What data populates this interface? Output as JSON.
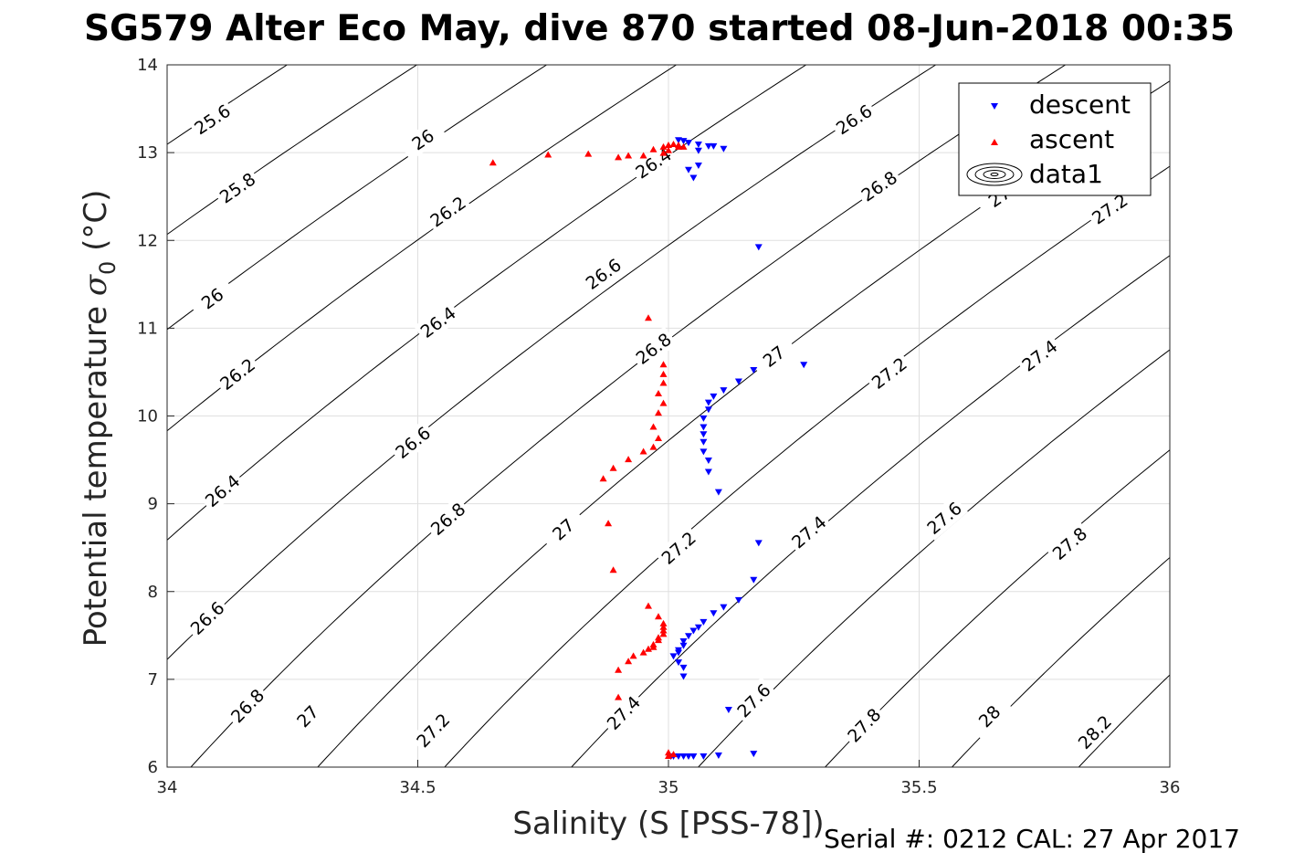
{
  "chart_data": {
    "type": "scatter",
    "title": "SG579 Alter Eco May, dive 870 started 08-Jun-2018 00:35",
    "xlabel": "Salinity (S [PSS-78])",
    "ylabel_main": "Potential temperature ",
    "ylabel_sigma": "σ",
    "ylabel_sub": "0",
    "ylabel_unit": " (°C)",
    "footer": "Serial #: 0212  CAL: 27 Apr 2017",
    "xlim": [
      34,
      36
    ],
    "ylim": [
      6,
      14
    ],
    "x_ticks": [
      34,
      34.5,
      35,
      35.5,
      36
    ],
    "x_tick_labels": [
      "34",
      "34.5",
      "35",
      "35.5",
      "36"
    ],
    "y_ticks": [
      6,
      7,
      8,
      9,
      10,
      11,
      12,
      13,
      14
    ],
    "y_tick_labels": [
      "6",
      "7",
      "8",
      "9",
      "10",
      "11",
      "12",
      "13",
      "14"
    ],
    "grid": true,
    "legend_position": "top-right",
    "contour_levels": [
      25.6,
      25.8,
      26.0,
      26.2,
      26.4,
      26.6,
      26.8,
      27.0,
      27.2,
      27.4,
      27.6,
      27.8,
      28.0,
      28.2
    ],
    "contour_labels": [
      {
        "text": "25.6",
        "S": 34.09,
        "T": 13.38
      },
      {
        "text": "25.8",
        "S": 34.14,
        "T": 12.6
      },
      {
        "text": "26",
        "S": 34.09,
        "T": 11.34
      },
      {
        "text": "26.2",
        "S": 34.14,
        "T": 10.48
      },
      {
        "text": "26.4",
        "S": 34.11,
        "T": 9.15
      },
      {
        "text": "26.6",
        "S": 34.08,
        "T": 7.7
      },
      {
        "text": "26.8",
        "S": 34.16,
        "T": 6.7
      },
      {
        "text": "26",
        "S": 34.51,
        "T": 13.15
      },
      {
        "text": "26.2",
        "S": 34.56,
        "T": 12.33
      },
      {
        "text": "26.4",
        "S": 34.54,
        "T": 11.07
      },
      {
        "text": "26.6",
        "S": 34.49,
        "T": 9.7
      },
      {
        "text": "26.8",
        "S": 34.56,
        "T": 8.83
      },
      {
        "text": "27",
        "S": 34.28,
        "T": 6.58
      },
      {
        "text": "27.2",
        "S": 34.53,
        "T": 6.42
      },
      {
        "text": "26.4",
        "S": 34.97,
        "T": 12.88
      },
      {
        "text": "26.6",
        "S": 34.87,
        "T": 11.62
      },
      {
        "text": "26.8",
        "S": 34.97,
        "T": 10.77
      },
      {
        "text": "27",
        "S": 34.79,
        "T": 8.71
      },
      {
        "text": "27.2",
        "S": 35.02,
        "T": 8.5
      },
      {
        "text": "27.4",
        "S": 34.91,
        "T": 6.62
      },
      {
        "text": "26.6",
        "S": 35.37,
        "T": 13.38
      },
      {
        "text": "26.8",
        "S": 35.42,
        "T": 12.62
      },
      {
        "text": "27",
        "S": 35.21,
        "T": 10.68
      },
      {
        "text": "27.2",
        "S": 35.44,
        "T": 10.49
      },
      {
        "text": "27.4",
        "S": 35.28,
        "T": 8.68
      },
      {
        "text": "27.6",
        "S": 35.17,
        "T": 6.76
      },
      {
        "text": "27.4",
        "S": 35.74,
        "T": 10.69
      },
      {
        "text": "27.6",
        "S": 35.55,
        "T": 8.84
      },
      {
        "text": "27.8",
        "S": 35.8,
        "T": 8.55
      },
      {
        "text": "27.8",
        "S": 35.39,
        "T": 6.48
      },
      {
        "text": "28",
        "S": 35.64,
        "T": 6.58
      },
      {
        "text": "28.2",
        "S": 35.85,
        "T": 6.4
      },
      {
        "text": "27.2",
        "S": 35.88,
        "T": 12.36
      },
      {
        "text": "27",
        "S": 35.66,
        "T": 12.5
      }
    ],
    "series": [
      {
        "name": "descent",
        "color": "#0000ff",
        "marker": "triangle-down",
        "points": [
          [
            35.02,
            13.14
          ],
          [
            35.03,
            13.13
          ],
          [
            35.04,
            13.11
          ],
          [
            35.06,
            13.09
          ],
          [
            35.08,
            13.07
          ],
          [
            35.09,
            13.07
          ],
          [
            35.11,
            13.04
          ],
          [
            35.06,
            13.02
          ],
          [
            35.06,
            12.85
          ],
          [
            35.04,
            12.8
          ],
          [
            35.05,
            12.71
          ],
          [
            35.18,
            11.92
          ],
          [
            35.27,
            10.58
          ],
          [
            35.17,
            10.52
          ],
          [
            35.14,
            10.39
          ],
          [
            35.11,
            10.29
          ],
          [
            35.09,
            10.22
          ],
          [
            35.08,
            10.15
          ],
          [
            35.08,
            10.07
          ],
          [
            35.07,
            9.97
          ],
          [
            35.07,
            9.87
          ],
          [
            35.07,
            9.79
          ],
          [
            35.07,
            9.7
          ],
          [
            35.07,
            9.59
          ],
          [
            35.08,
            9.49
          ],
          [
            35.08,
            9.36
          ],
          [
            35.1,
            9.13
          ],
          [
            35.18,
            8.55
          ],
          [
            35.17,
            8.13
          ],
          [
            35.14,
            7.9
          ],
          [
            35.11,
            7.82
          ],
          [
            35.09,
            7.75
          ],
          [
            35.07,
            7.65
          ],
          [
            35.06,
            7.59
          ],
          [
            35.05,
            7.55
          ],
          [
            35.04,
            7.49
          ],
          [
            35.03,
            7.43
          ],
          [
            35.03,
            7.38
          ],
          [
            35.02,
            7.33
          ],
          [
            35.02,
            7.3
          ],
          [
            35.01,
            7.26
          ],
          [
            35.02,
            7.19
          ],
          [
            35.03,
            7.13
          ],
          [
            35.03,
            7.03
          ],
          [
            35.12,
            6.65
          ],
          [
            35.17,
            6.15
          ],
          [
            35.1,
            6.13
          ],
          [
            35.07,
            6.12
          ],
          [
            35.05,
            6.12
          ],
          [
            35.04,
            6.12
          ],
          [
            35.03,
            6.12
          ],
          [
            35.02,
            6.12
          ],
          [
            35.01,
            6.12
          ],
          [
            35.005,
            6.12
          ]
        ]
      },
      {
        "name": "ascent",
        "color": "#ff0000",
        "marker": "triangle-up",
        "points": [
          [
            34.65,
            12.89
          ],
          [
            34.76,
            12.98
          ],
          [
            34.84,
            12.99
          ],
          [
            34.9,
            12.95
          ],
          [
            34.92,
            12.97
          ],
          [
            34.95,
            12.97
          ],
          [
            34.97,
            13.04
          ],
          [
            34.99,
            13.07
          ],
          [
            35.0,
            13.09
          ],
          [
            35.01,
            13.1
          ],
          [
            35.02,
            13.09
          ],
          [
            35.02,
            13.07
          ],
          [
            35.03,
            13.07
          ],
          [
            35.0,
            13.03
          ],
          [
            34.99,
            13.0
          ],
          [
            34.96,
            11.12
          ],
          [
            34.99,
            10.59
          ],
          [
            34.99,
            10.48
          ],
          [
            34.99,
            10.38
          ],
          [
            34.98,
            10.26
          ],
          [
            34.99,
            10.15
          ],
          [
            34.98,
            10.04
          ],
          [
            34.97,
            9.88
          ],
          [
            34.98,
            9.75
          ],
          [
            34.97,
            9.65
          ],
          [
            34.95,
            9.6
          ],
          [
            34.92,
            9.51
          ],
          [
            34.89,
            9.41
          ],
          [
            34.87,
            9.29
          ],
          [
            34.88,
            8.78
          ],
          [
            34.89,
            8.25
          ],
          [
            34.96,
            7.84
          ],
          [
            34.98,
            7.72
          ],
          [
            34.99,
            7.64
          ],
          [
            34.99,
            7.6
          ],
          [
            34.99,
            7.56
          ],
          [
            34.99,
            7.52
          ],
          [
            34.98,
            7.48
          ],
          [
            34.98,
            7.45
          ],
          [
            34.97,
            7.4
          ],
          [
            34.97,
            7.37
          ],
          [
            34.96,
            7.35
          ],
          [
            34.95,
            7.31
          ],
          [
            34.93,
            7.27
          ],
          [
            34.92,
            7.21
          ],
          [
            34.9,
            7.11
          ],
          [
            34.9,
            6.8
          ],
          [
            35.0,
            6.17
          ],
          [
            35.01,
            6.15
          ],
          [
            35.0,
            6.13
          ]
        ]
      }
    ],
    "legend": [
      {
        "label": "descent",
        "color": "#0000ff",
        "marker": "triangle-down"
      },
      {
        "label": "ascent",
        "color": "#ff0000",
        "marker": "triangle-up"
      },
      {
        "label": "data1",
        "color": "#000000",
        "marker": "contour"
      }
    ]
  }
}
